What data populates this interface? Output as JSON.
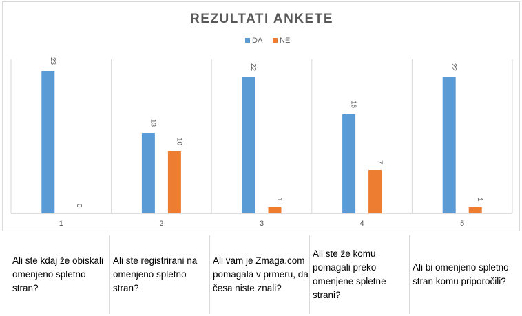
{
  "chart_data": {
    "type": "bar",
    "title": "REZULTATI ANKETE",
    "categories": [
      "1",
      "2",
      "3",
      "4",
      "5"
    ],
    "series": [
      {
        "name": "DA",
        "color": "#5b9bd5",
        "values": [
          23,
          13,
          22,
          16,
          22
        ]
      },
      {
        "name": "NE",
        "color": "#ed7d31",
        "values": [
          0,
          10,
          1,
          7,
          1
        ]
      }
    ],
    "ylim": [
      0,
      23
    ],
    "legend": "top-center",
    "grid": "vertical separators only",
    "data_labels": "rotated, above bars"
  },
  "questions": [
    "Ali ste kdaj že obiskali omenjeno spletno stran?",
    "Ali ste registrirani na omenjeno spletno stran?",
    "Ali vam je Zmaga.com pomagala v prmeru, da česa niste znali?",
    "Ali ste že komu pomagali preko omenjene spletne strani?",
    "Ali bi omenjeno spletno stran komu priporočili?"
  ]
}
